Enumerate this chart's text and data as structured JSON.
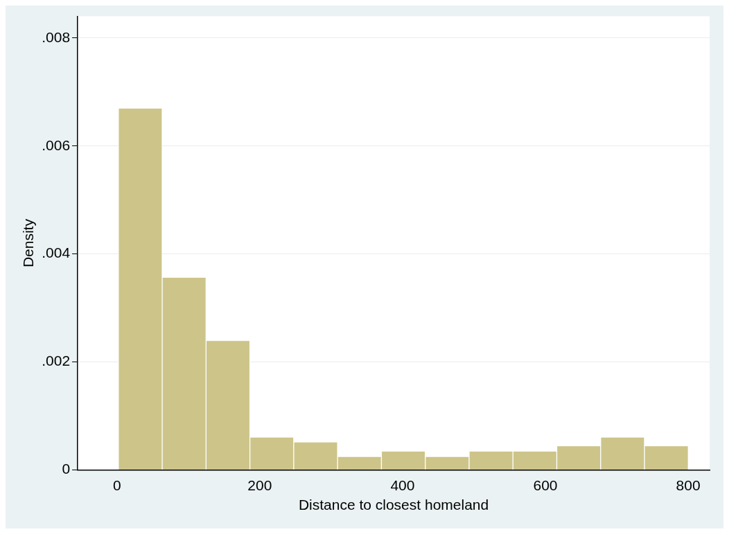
{
  "chart_data": {
    "type": "histogram",
    "xlabel": "Distance to closest homeland",
    "ylabel": "Density",
    "bins": [
      2,
      63.4,
      124.8,
      186.2,
      247.6,
      309,
      370.4,
      431.8,
      493.2,
      554.6,
      616,
      677.4,
      738.8,
      800.2
    ],
    "values": [
      0.0067,
      0.00357,
      0.0024,
      0.00061,
      0.00052,
      0.00025,
      0.00035,
      0.00025,
      0.00035,
      0.00035,
      0.00045,
      0.00061,
      0.00045
    ],
    "color": "#cdc489",
    "xlim": [
      -55,
      830
    ],
    "xticks": [
      0,
      200,
      400,
      600,
      800
    ],
    "ylim": [
      0,
      0.0084
    ],
    "yticks": [
      {
        "value": 0,
        "label": "0"
      },
      {
        "value": 0.002,
        "label": ".002"
      },
      {
        "value": 0.004,
        "label": ".004"
      },
      {
        "value": 0.006,
        "label": ".006"
      },
      {
        "value": 0.008,
        "label": ".008"
      }
    ],
    "grid": "y"
  }
}
